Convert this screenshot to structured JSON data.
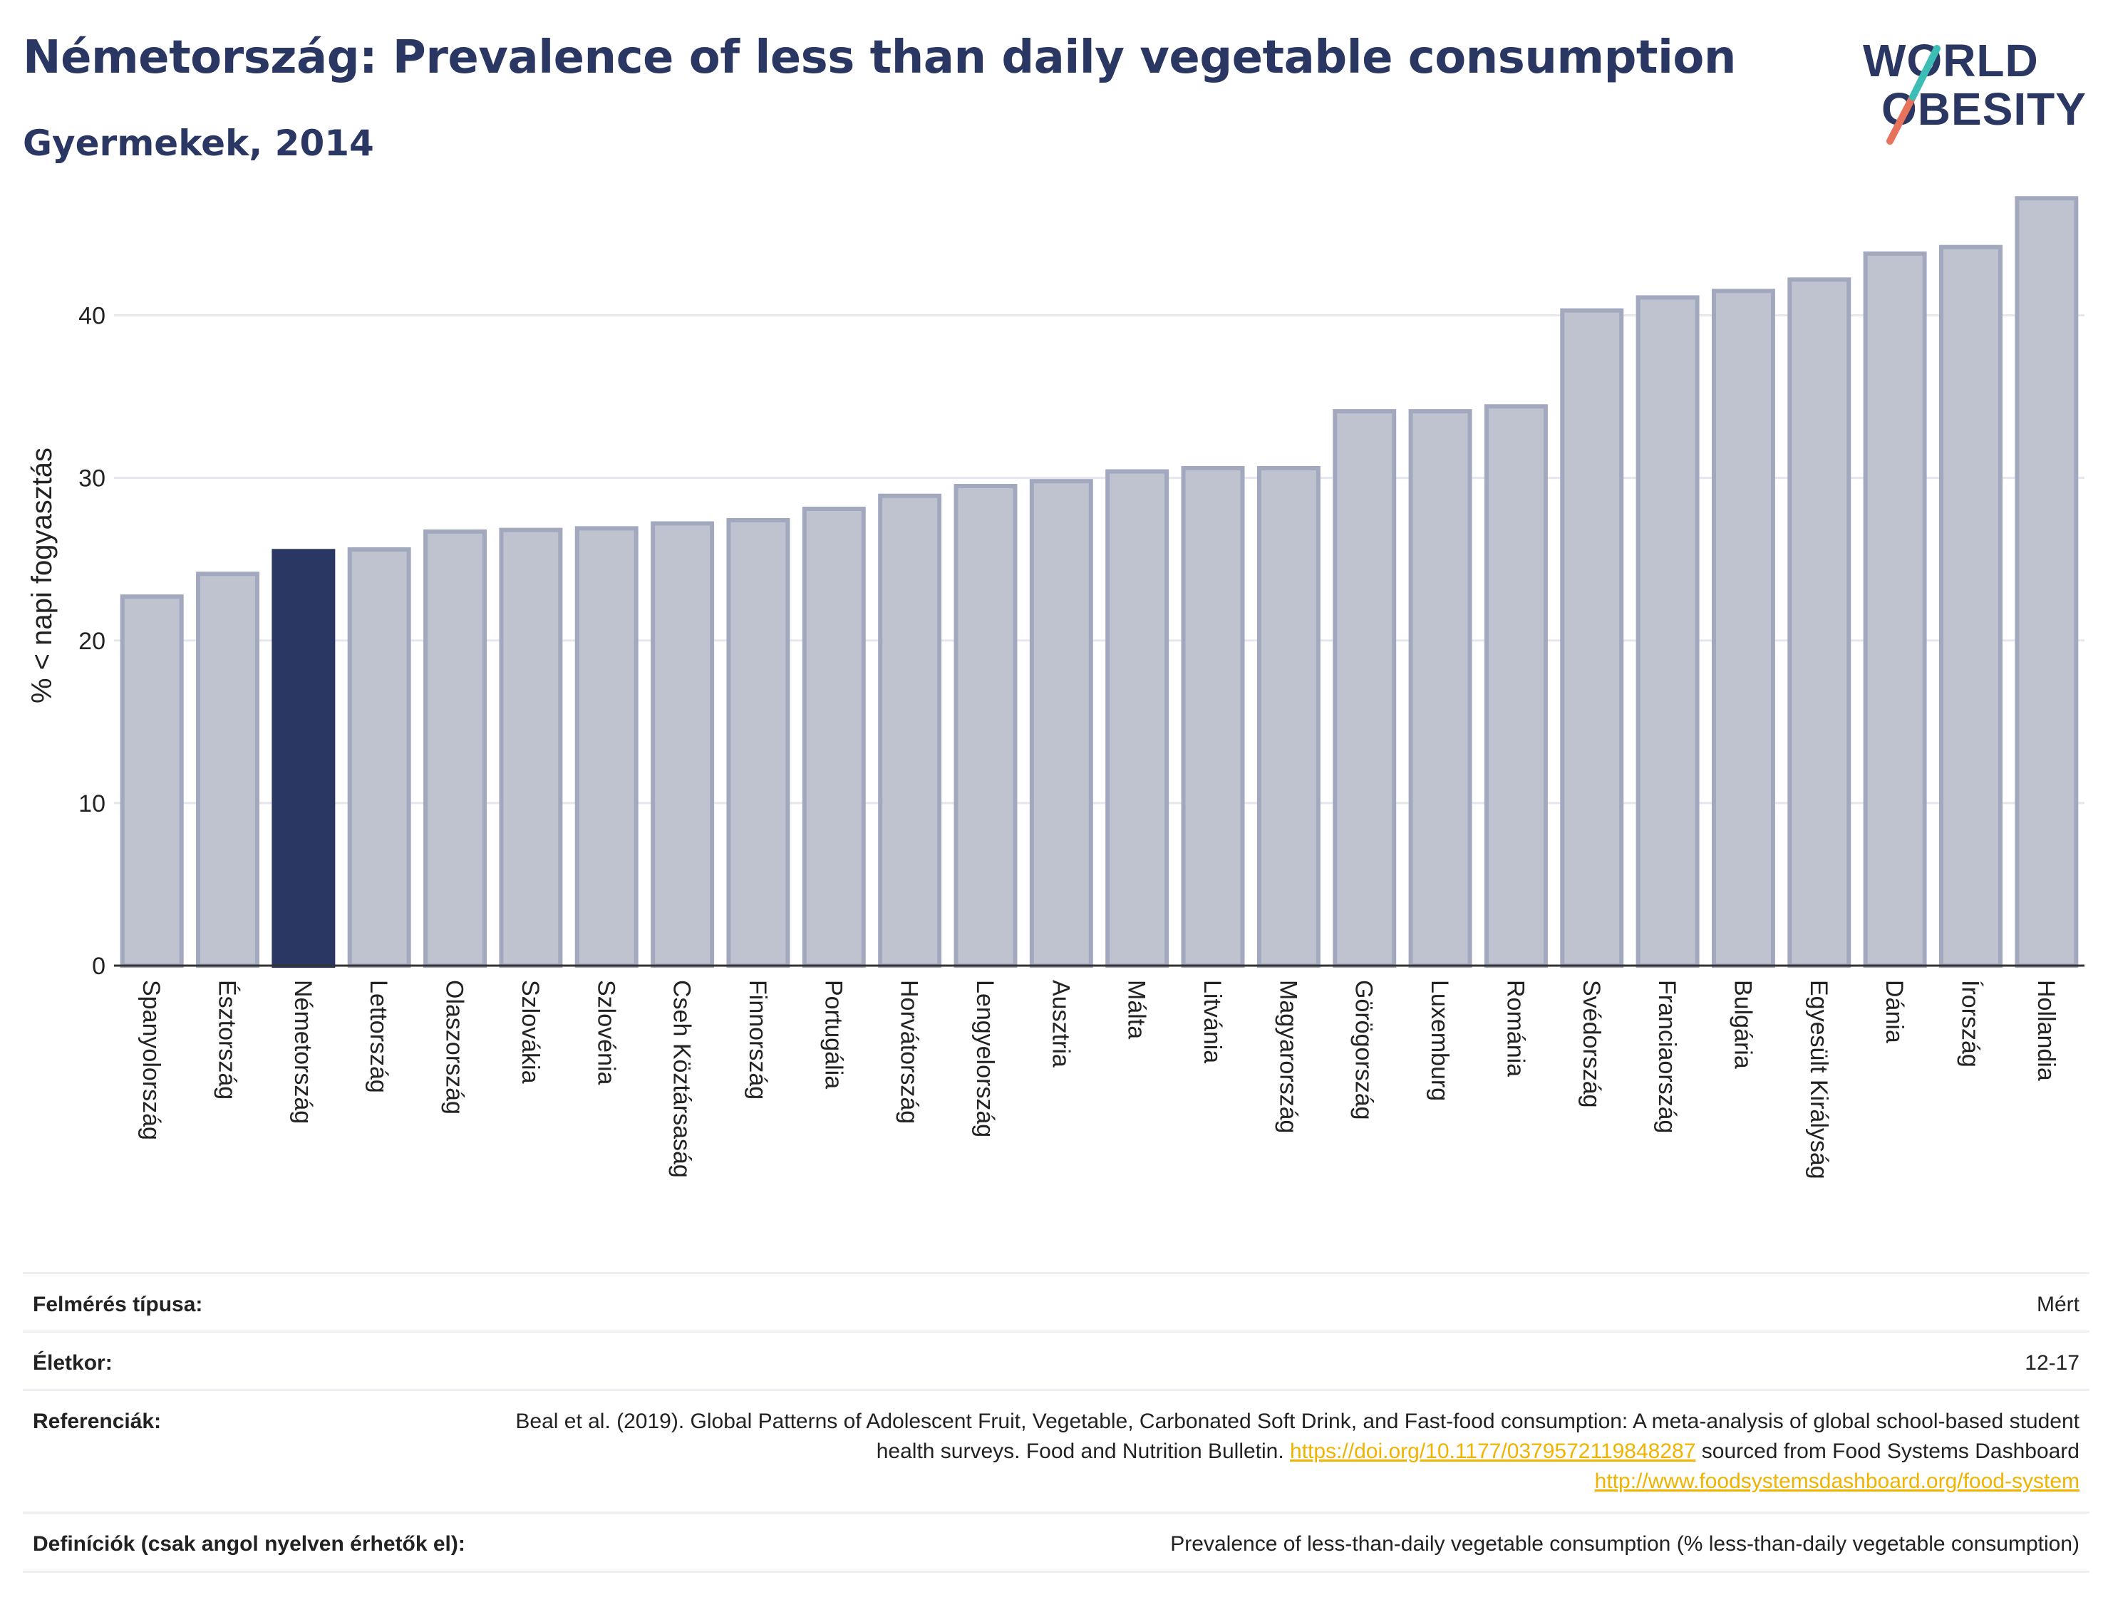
{
  "title": "Németország: Prevalence of less than daily vegetable consumption",
  "subtitle": "Gyermekek, 2014",
  "logo": {
    "line1": "WORLD",
    "line2": "OBESITY"
  },
  "colors": {
    "highlight": "#2b3763",
    "bar": "#bfc3d0",
    "bar_stroke": "#a2a8be",
    "text": "#2b3763",
    "link": "#f0b400"
  },
  "chart_data": {
    "type": "bar",
    "title": "Németország: Prevalence of less than daily vegetable consumption",
    "subtitle": "Gyermekek, 2014",
    "ylabel": "% < napi fogyasztás",
    "xlabel": "",
    "ylim": [
      0,
      48
    ],
    "yticks": [
      0,
      10,
      20,
      30,
      40
    ],
    "grid": true,
    "highlight": "Németország",
    "categories": [
      "Spanyolország",
      "Észtország",
      "Németország",
      "Lettország",
      "Olaszország",
      "Szlovákia",
      "Szlovénia",
      "Cseh Köztársaság",
      "Finnország",
      "Portugália",
      "Horvátország",
      "Lengyelország",
      "Ausztria",
      "Málta",
      "Litvánia",
      "Magyarország",
      "Görögország",
      "Luxemburg",
      "Románia",
      "Svédország",
      "Franciaország",
      "Bulgária",
      "Egyesült Királyság",
      "Dánia",
      "Írország",
      "Hollandia"
    ],
    "values": [
      22.7,
      24.1,
      25.5,
      25.6,
      26.7,
      26.8,
      26.9,
      27.2,
      27.4,
      28.1,
      28.9,
      29.5,
      29.8,
      30.4,
      30.6,
      30.6,
      34.1,
      34.1,
      34.4,
      40.3,
      41.1,
      41.5,
      42.2,
      43.8,
      44.2,
      47.2
    ]
  },
  "info": {
    "survey_label": "Felmérés típusa:",
    "survey_value": "Mért",
    "age_label": "Életkor:",
    "age_value": "12-17",
    "ref_label": "Referenciák:",
    "ref_text1": "Beal et al. (2019). Global Patterns of Adolescent Fruit, Vegetable, Carbonated Soft Drink, and Fast-food consumption: A meta-analysis of global school-based student health surveys. Food and Nutrition Bulletin. ",
    "ref_link1": "https://doi.org/10.1177/0379572119848287",
    "ref_text2": " sourced from Food Systems Dashboard ",
    "ref_link2": "http://www.foodsystemsdashboard.org/food-system",
    "def_label": "Definíciók (csak angol nyelven érhetők el):",
    "def_value": "Prevalence of less-than-daily vegetable consumption (% less-than-daily vegetable consumption)"
  }
}
